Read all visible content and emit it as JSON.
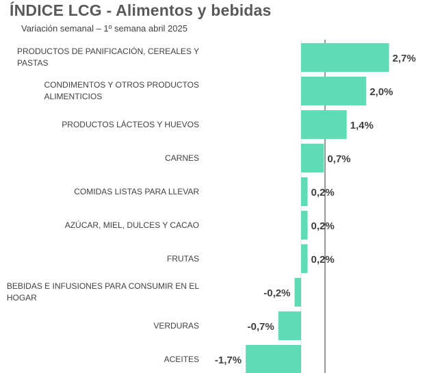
{
  "chart_data": {
    "type": "bar",
    "orientation": "horizontal",
    "title": "ÍNDICE LCG - Alimentos y bebidas",
    "subtitle": "Variación semanal – 1º semana abril 2025",
    "bar_color": "#5DDCB5",
    "categories": [
      [
        "PRODUCTOS DE PANIFICACIÓN, CEREALES Y",
        "PASTAS"
      ],
      [
        "CONDIMENTOS Y OTROS PRODUCTOS",
        "ALIMENTICIOS"
      ],
      [
        "PRODUCTOS LÁCTEOS Y HUEVOS"
      ],
      [
        "CARNES"
      ],
      [
        "COMIDAS LISTAS PARA LLEVAR"
      ],
      [
        "AZÚCAR, MIEL, DULCES Y CACAO"
      ],
      [
        "FRUTAS"
      ],
      [
        "BEBIDAS E INFUSIONES PARA CONSUMIR EN EL",
        "HOGAR"
      ],
      [
        "VERDURAS"
      ],
      [
        "ACEITES"
      ]
    ],
    "values": [
      2.7,
      2.0,
      1.4,
      0.7,
      0.2,
      0.2,
      0.2,
      -0.2,
      -0.7,
      -1.7
    ],
    "value_labels": [
      "2,7%",
      "2,0%",
      "1,4%",
      "0,7%",
      "0,2%",
      "0,2%",
      "0,2%",
      "-0,2%",
      "-0,7%",
      "-1,7%"
    ]
  }
}
